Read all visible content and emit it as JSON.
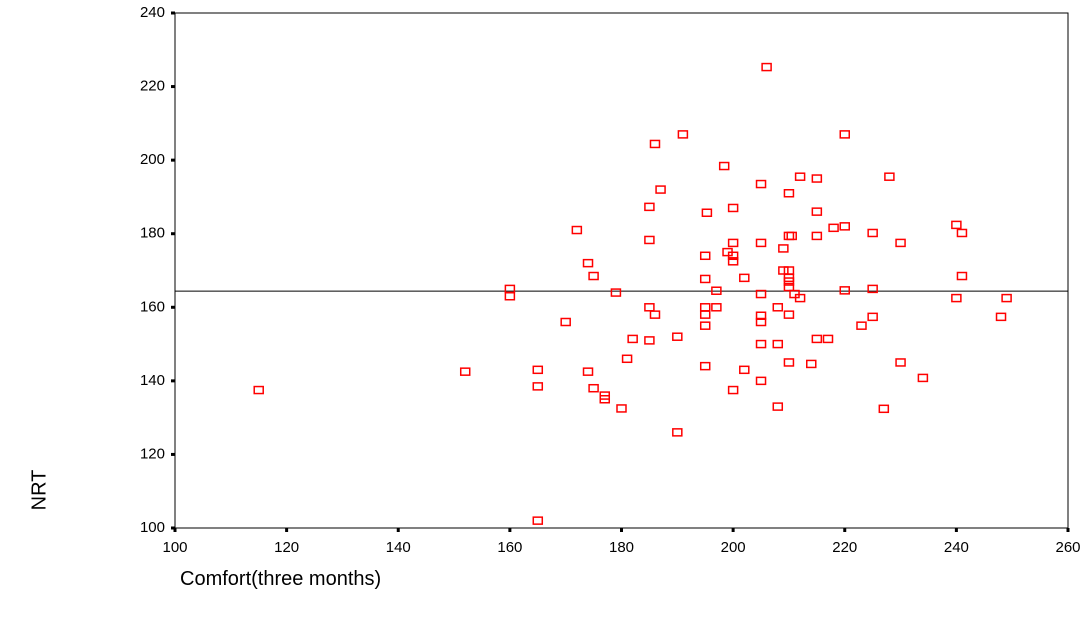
{
  "chart_data": {
    "type": "scatter",
    "x_label": "Comfort(three months)",
    "y_label": "NRT",
    "x": [
      115,
      152,
      160,
      160,
      165,
      165,
      165,
      170,
      172,
      174,
      175,
      174,
      175,
      177,
      177,
      179,
      180,
      181,
      182,
      185,
      185,
      185,
      185,
      186,
      186,
      187,
      190,
      190,
      191,
      195.3,
      195,
      195,
      195,
      195,
      195,
      195,
      197,
      197,
      198.4,
      199,
      200,
      200,
      200,
      200,
      200,
      202,
      202,
      205,
      205,
      205,
      205,
      205,
      205,
      205,
      206,
      208,
      208,
      208,
      209,
      209,
      210,
      210,
      210,
      210,
      210,
      210,
      210,
      210,
      210.5,
      211,
      212,
      212,
      214,
      215,
      215,
      215,
      215,
      217,
      218,
      220,
      220,
      220,
      223,
      225,
      225,
      225,
      227,
      228,
      230,
      230,
      234,
      240,
      240,
      241,
      241,
      248,
      249
    ],
    "values": [
      137.5,
      142.5,
      165,
      163,
      143,
      138.5,
      102,
      156,
      181,
      172,
      168.5,
      142.5,
      138,
      136,
      135,
      164,
      132.5,
      146,
      151.4,
      160,
      151,
      178.3,
      187.3,
      158,
      204.4,
      192,
      152,
      126,
      207,
      185.7,
      174,
      167.7,
      160,
      158,
      155,
      144,
      160,
      164.5,
      198.4,
      175,
      187,
      177.5,
      174,
      172.5,
      137.5,
      168,
      143,
      193.5,
      177.5,
      163.6,
      157.7,
      156,
      150,
      140,
      225.3,
      160,
      150,
      133,
      170,
      176,
      179.4,
      191,
      170,
      168,
      167,
      165.5,
      158,
      145,
      179.4,
      163.6,
      162.5,
      195.5,
      144.6,
      195,
      186,
      179.4,
      151.4,
      151.4,
      181.6,
      182,
      207,
      164.6,
      155,
      180.2,
      165,
      157.4,
      132.4,
      195.5,
      177.5,
      145,
      140.8,
      182.4,
      162.5,
      180.2,
      168.5,
      157.4,
      162.5
    ],
    "color": "#ff0000",
    "hline": 164.4,
    "xlim": [
      100,
      260
    ],
    "xticks": [
      100,
      120,
      140,
      160,
      180,
      200,
      220,
      240,
      260
    ],
    "ylim": [
      100,
      240
    ],
    "yticks": [
      100,
      120,
      140,
      160,
      180,
      200,
      220,
      240
    ]
  }
}
